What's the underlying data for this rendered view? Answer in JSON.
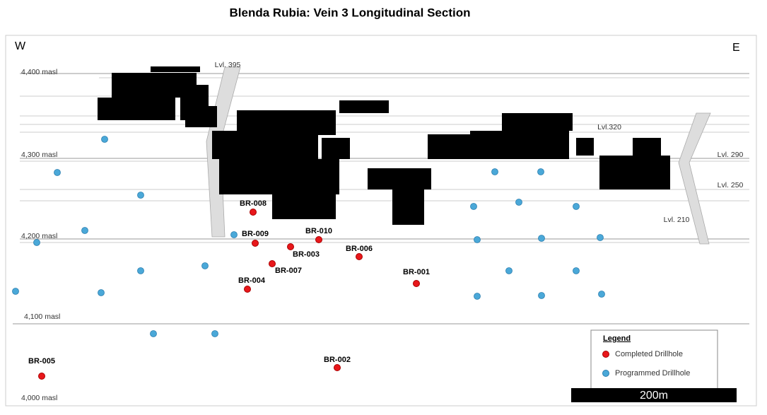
{
  "title": "Blenda Rubia: Vein 3 Longitudinal Section",
  "directions": {
    "west": "W",
    "east": "E"
  },
  "elevations": [
    "4,400 masl",
    "4,300 masl",
    "4,200 masl",
    "4,100 masl",
    "4,000 masl"
  ],
  "levels": [
    "Lvl. 395",
    "Lvl.320",
    "Lvl. 290",
    "Lvl. 250",
    "Lvl. 210"
  ],
  "completed_drillholes": [
    "BR-008",
    "BR-009",
    "BR-010",
    "BR-003",
    "BR-006",
    "BR-007",
    "BR-004",
    "BR-001",
    "BR-005",
    "BR-002"
  ],
  "legend": {
    "title": "Legend",
    "items": [
      "Completed Drillhole",
      "Programmed Drillhole"
    ]
  },
  "scale_bar": "200m"
}
